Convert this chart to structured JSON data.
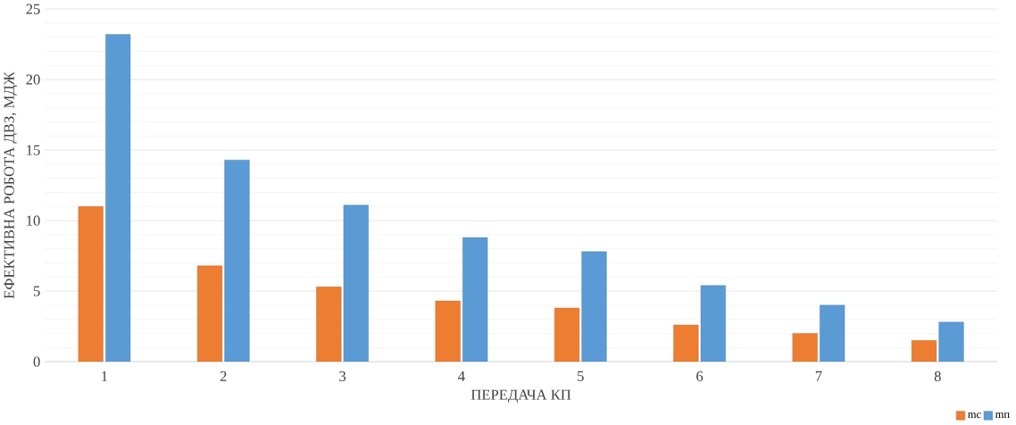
{
  "chart_data": {
    "type": "bar",
    "xlabel": "ПЕРЕДАЧА КП",
    "ylabel": "ЕФЕКТИВНА РОБОТА ДВЗ, МДЖ",
    "categories": [
      "1",
      "2",
      "3",
      "4",
      "5",
      "6",
      "7",
      "8"
    ],
    "series": [
      {
        "name": "mс",
        "color": "#ed7d31",
        "values": [
          11.0,
          6.8,
          5.3,
          4.3,
          3.8,
          2.6,
          2.0,
          1.5
        ]
      },
      {
        "name": "mп",
        "color": "#5b9bd5",
        "values": [
          23.2,
          14.3,
          11.1,
          8.8,
          7.8,
          5.4,
          4.0,
          2.8
        ]
      }
    ],
    "ylim": [
      0,
      25
    ],
    "yticks": [
      0,
      5,
      10,
      15,
      20,
      25
    ],
    "grid": "y",
    "legend": "bottom right"
  }
}
